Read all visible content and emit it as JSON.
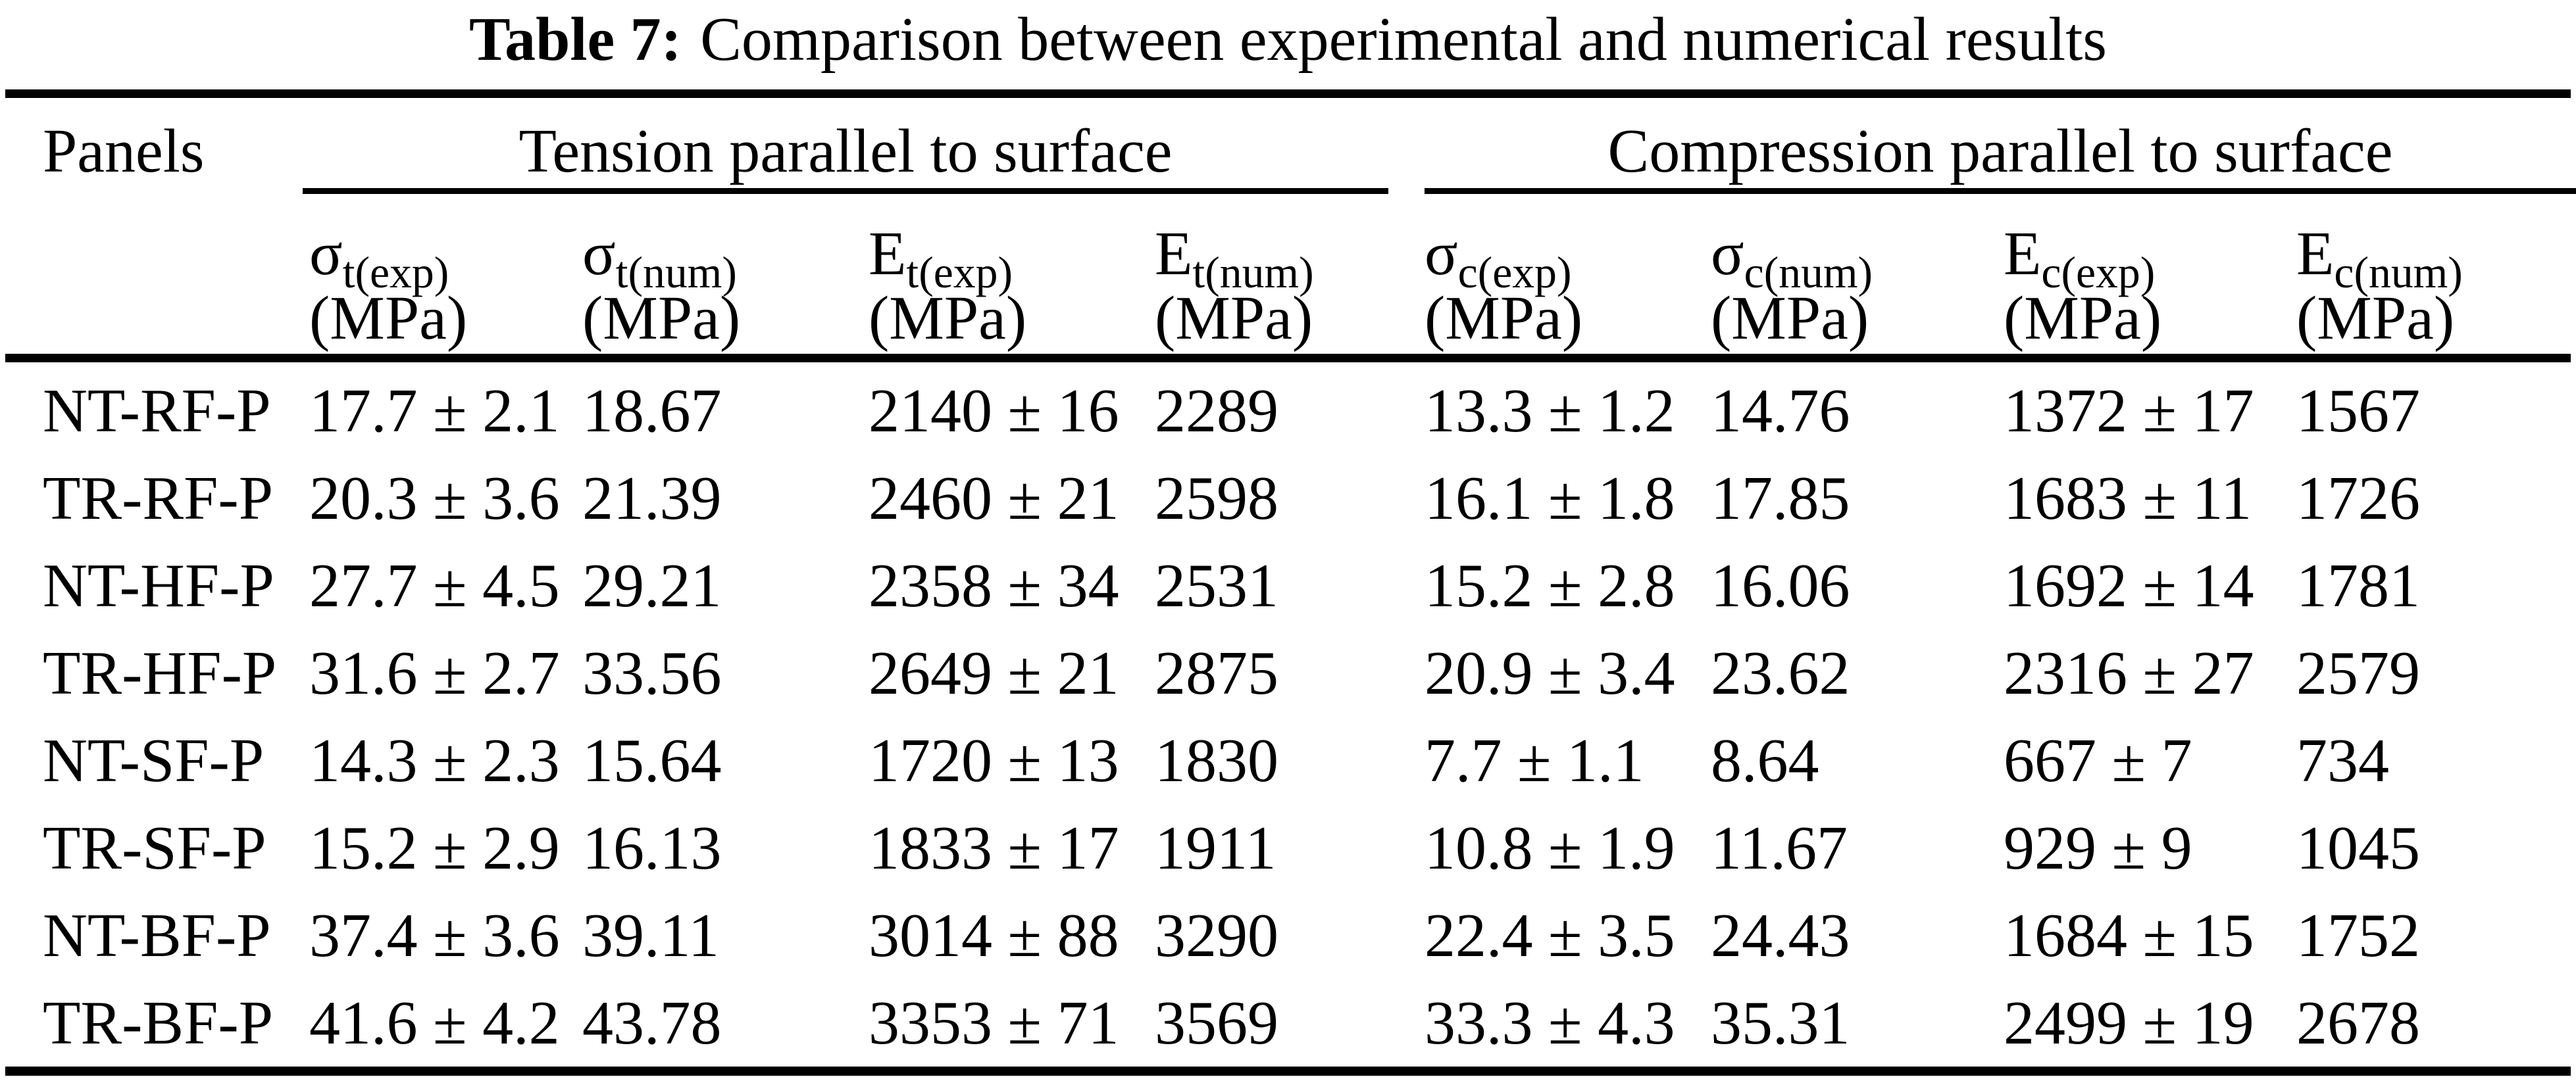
{
  "title": {
    "label": "Table 7:",
    "text": "Comparison between experimental and numerical results"
  },
  "table": {
    "panels_header": "Panels",
    "groups": [
      {
        "name": "Tension parallel to surface"
      },
      {
        "name": "Compression parallel to surface"
      }
    ],
    "columns": [
      {
        "base": "σ",
        "sub": "t(exp)",
        "unit": "(MPa)"
      },
      {
        "base": "σ",
        "sub": "t(num)",
        "unit": "(MPa)"
      },
      {
        "base": "E",
        "sub": "t(exp)",
        "unit": "(MPa)"
      },
      {
        "base": "E",
        "sub": "t(num)",
        "unit": "(MPa)"
      },
      {
        "base": "σ",
        "sub": "c(exp)",
        "unit": "(MPa)"
      },
      {
        "base": "σ",
        "sub": "c(num)",
        "unit": "(MPa)"
      },
      {
        "base": "E",
        "sub": "c(exp)",
        "unit": "(MPa)"
      },
      {
        "base": "E",
        "sub": "c(num)",
        "unit": "(MPa)"
      }
    ],
    "rows": [
      {
        "panel": "NT-RF-P",
        "values": [
          "17.7 ± 2.1",
          "18.67",
          "2140 ± 16",
          "2289",
          "13.3 ± 1.2",
          "14.76",
          "1372 ± 17",
          "1567"
        ]
      },
      {
        "panel": "TR-RF-P",
        "values": [
          "20.3 ± 3.6",
          "21.39",
          "2460 ± 21",
          "2598",
          "16.1 ± 1.8",
          "17.85",
          "1683 ± 11",
          "1726"
        ]
      },
      {
        "panel": "NT-HF-P",
        "values": [
          "27.7 ± 4.5",
          "29.21",
          "2358 ± 34",
          "2531",
          "15.2 ± 2.8",
          "16.06",
          "1692 ± 14",
          "1781"
        ]
      },
      {
        "panel": "TR-HF-P",
        "values": [
          "31.6 ± 2.7",
          "33.56",
          "2649 ± 21",
          "2875",
          "20.9 ± 3.4",
          "23.62",
          "2316 ± 27",
          "2579"
        ]
      },
      {
        "panel": "NT-SF-P",
        "values": [
          "14.3 ± 2.3",
          "15.64",
          "1720 ± 13",
          "1830",
          "7.7 ± 1.1",
          "8.64",
          "667 ± 7",
          "734"
        ]
      },
      {
        "panel": "TR-SF-P",
        "values": [
          "15.2 ± 2.9",
          "16.13",
          "1833 ± 17",
          "1911",
          "10.8 ± 1.9",
          "11.67",
          "929 ± 9",
          "1045"
        ]
      },
      {
        "panel": "NT-BF-P",
        "values": [
          "37.4 ± 3.6",
          "39.11",
          "3014 ± 88",
          "3290",
          "22.4 ± 3.5",
          "24.43",
          "1684 ± 15",
          "1752"
        ]
      },
      {
        "panel": "TR-BF-P",
        "values": [
          "41.6 ± 4.2",
          "43.78",
          "3353 ± 71",
          "3569",
          "33.3 ± 4.3",
          "35.31",
          "2499 ± 19",
          "2678"
        ]
      }
    ]
  }
}
